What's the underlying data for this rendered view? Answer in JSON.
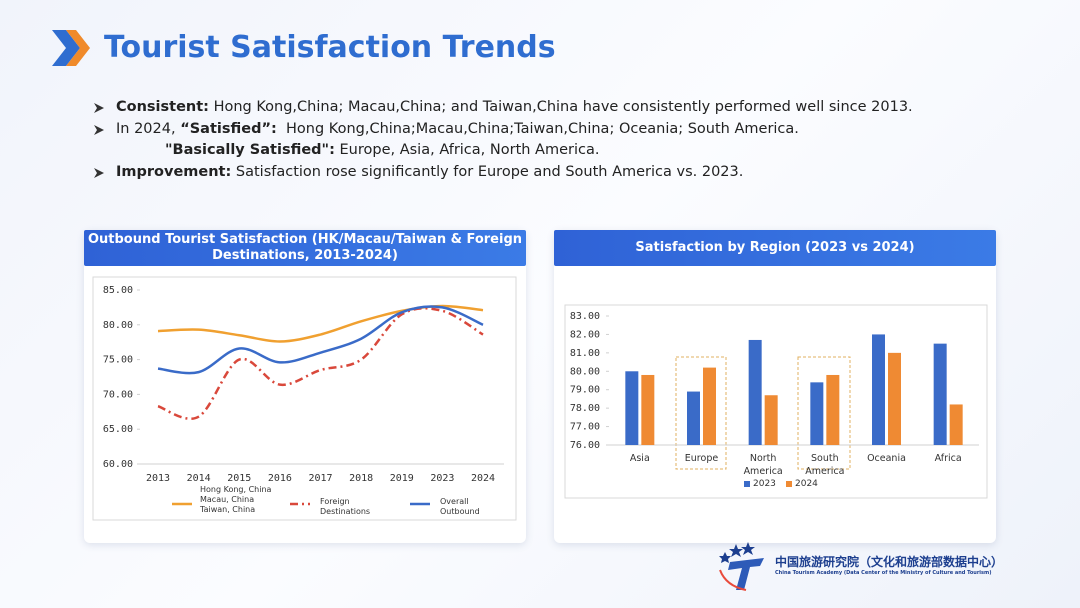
{
  "title": "Tourist Satisfaction Trends",
  "bullets": [
    {
      "lines": [
        [
          {
            "text": "Consistent:",
            "bold": true
          },
          {
            "text": " Hong Kong,China; Macau,China; and Taiwan,China have consistently performed well since 2013."
          }
        ]
      ]
    },
    {
      "lines": [
        [
          {
            "text": "In 2024, "
          },
          {
            "text": "“Satisfied”:",
            "bold": true
          },
          {
            "text": "  Hong Kong,China;Macau,China;Taiwan,China; Oceania; South America."
          }
        ],
        [
          {
            "text": "\"Basically Satisfied\":",
            "bold": true
          },
          {
            "text": " Europe, Asia, Africa, North America."
          }
        ]
      ]
    },
    {
      "lines": [
        [
          {
            "text": "Improvement:",
            "bold": true
          },
          {
            "text": " Satisfaction rose significantly for Europe and South America vs. 2023."
          }
        ]
      ]
    }
  ],
  "logo": {
    "name": "中国旅游研究院（文化和旅游部数据中心）",
    "subtitle": "China Tourism Academy (Data Center of the Ministry of Culture and Tourism)"
  },
  "chart_data": [
    {
      "type": "line",
      "title": "Outbound Tourist Satisfaction (HK/Macau/Taiwan & Foreign Destinations, 2013-2024)",
      "categories": [
        "2013",
        "2014",
        "2015",
        "2016",
        "2017",
        "2018",
        "2019",
        "2023",
        "2024"
      ],
      "ylim": [
        60,
        85
      ],
      "yticks": [
        {
          "value": 60,
          "label": "60.00"
        },
        {
          "value": 65,
          "label": "65.00"
        },
        {
          "value": 70,
          "label": "70.00"
        },
        {
          "value": 75,
          "label": "75.00"
        },
        {
          "value": 80,
          "label": "80.00"
        },
        {
          "value": 85,
          "label": "85.00"
        }
      ],
      "series": [
        {
          "name": "Hong Kong, China Macau, China Taiwan, China",
          "color": "#f0a030",
          "style": "solid",
          "values": [
            79.1,
            79.3,
            78.5,
            77.6,
            78.6,
            80.5,
            82.0,
            82.7,
            82.1
          ]
        },
        {
          "name": "Foreign Destinations",
          "color": "#d9483b",
          "style": "dashdot",
          "values": [
            68.3,
            66.8,
            75.0,
            71.4,
            73.5,
            75.0,
            81.5,
            82.0,
            78.6
          ]
        },
        {
          "name": "Overall Outbound",
          "color": "#3a6bc8",
          "style": "solid",
          "values": [
            73.7,
            73.2,
            76.6,
            74.6,
            76.0,
            78.0,
            81.8,
            82.5,
            80.0
          ]
        }
      ]
    },
    {
      "type": "bar",
      "title": "Satisfaction by Region (2023 vs 2024)",
      "categories": [
        "Asia",
        "Europe",
        "North America",
        "South America",
        "Oceania",
        "Africa"
      ],
      "ylim": [
        76,
        83
      ],
      "yticks": [
        {
          "value": 76,
          "label": "76.00"
        },
        {
          "value": 77,
          "label": "77.00"
        },
        {
          "value": 78,
          "label": "78.00"
        },
        {
          "value": 79,
          "label": "79.00"
        },
        {
          "value": 80,
          "label": "80.00"
        },
        {
          "value": 81,
          "label": "81.00"
        },
        {
          "value": 82,
          "label": "82.00"
        },
        {
          "value": 83,
          "label": "83.00"
        }
      ],
      "series": [
        {
          "name": "2023",
          "color": "#3a6bc8",
          "values": [
            80.0,
            78.9,
            81.7,
            79.4,
            82.0,
            81.5
          ]
        },
        {
          "name": "2024",
          "color": "#ef8a33",
          "values": [
            79.8,
            80.2,
            78.7,
            79.8,
            81.0,
            78.2
          ]
        }
      ]
    }
  ]
}
